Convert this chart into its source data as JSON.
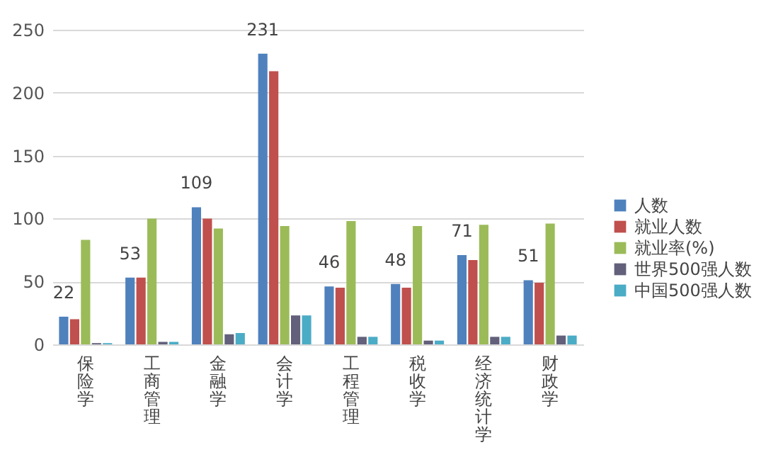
{
  "chart_data": {
    "type": "bar",
    "categories": [
      "保险学",
      "工商管理",
      "金融学",
      "会计学",
      "工程管理",
      "税收学",
      "经济统计学",
      "财政学"
    ],
    "series": [
      {
        "name": "人数",
        "color": "#4f81bd",
        "values": [
          22,
          53,
          109,
          231,
          46,
          48,
          71,
          51
        ],
        "value_labels": [
          "22",
          "53",
          "109",
          "231",
          "46",
          "48",
          "71",
          "51"
        ]
      },
      {
        "name": "就业人数",
        "color": "#c0504d",
        "values": [
          20,
          53,
          100,
          217,
          45,
          45,
          67,
          49
        ]
      },
      {
        "name": "就业率(%)",
        "color": "#9bbb59",
        "values": [
          83,
          100,
          92,
          94,
          98,
          94,
          95,
          96
        ]
      },
      {
        "name": "世界500强人数",
        "color": "#62607a",
        "values": [
          1,
          2,
          8,
          23,
          6,
          3,
          6,
          7
        ]
      },
      {
        "name": "中国500强人数",
        "color": "#4bacc6",
        "values": [
          1,
          2,
          9,
          23,
          6,
          3,
          6,
          7
        ]
      }
    ],
    "ylim": [
      0,
      250
    ],
    "yticks": [
      0,
      50,
      100,
      150,
      200,
      250
    ],
    "grid": "y",
    "legend": "right"
  }
}
